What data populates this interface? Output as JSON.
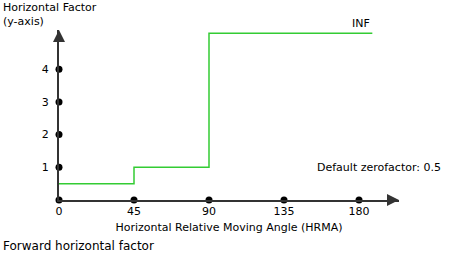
{
  "chart_data": {
    "type": "line",
    "title": "Forward horizontal factor",
    "x_label": "Horizontal Relative Moving Angle (HRMA)",
    "y_label": "Horizontal Factor\n(y-axis)",
    "x": [
      0,
      45,
      90,
      188
    ],
    "values": [
      0.5,
      1,
      5.1,
      5.1
    ],
    "color": "#33cc33",
    "line_style": "step",
    "xlim": [
      0,
      204
    ],
    "ylim": [
      0,
      5.2
    ],
    "xticks": [
      0,
      45,
      90,
      135,
      180
    ],
    "yticks": [
      1,
      2,
      3,
      4
    ],
    "grid": false,
    "annotations": [
      "INF",
      "Default zerofactor: 0.5"
    ]
  }
}
